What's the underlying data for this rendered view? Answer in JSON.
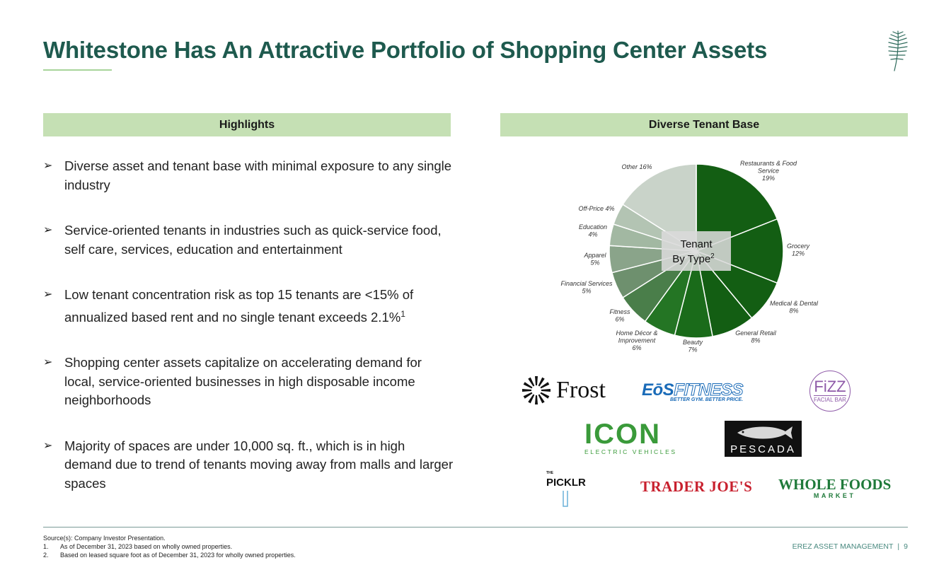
{
  "title": "Whitestone Has An Attractive Portfolio of Shopping Center Assets",
  "left_panel": {
    "header": "Highlights",
    "bullets": [
      {
        "text": "Diverse asset and tenant base with minimal exposure to any single industry",
        "sup": ""
      },
      {
        "text": "Service-oriented tenants in industries such as quick-service food, self care, services, education and entertainment",
        "sup": ""
      },
      {
        "text": "Low tenant concentration risk as top 15 tenants are <15% of annualized based rent and no single tenant exceeds 2.1%",
        "sup": "1"
      },
      {
        "text": "Shopping center assets capitalize on accelerating demand for local, service-oriented businesses in high disposable income neighborhoods",
        "sup": ""
      },
      {
        "text": "Majority of spaces are under 10,000 sq. ft., which is in high demand due to trend of tenants moving away from malls and larger spaces",
        "sup": ""
      }
    ]
  },
  "right_panel": {
    "header": "Diverse Tenant Base",
    "logos": {
      "frost": "Frost",
      "eos_a": "EōS",
      "eos_b": "FITNESS",
      "eos_tag": "BETTER GYM. BETTER PRICE.",
      "fizz_main": "FiZZ",
      "fizz_sub": "FACIAL BAR",
      "icon_main": "ICON",
      "icon_sub": "ELECTRIC VEHICLES",
      "pescada": "PESCADA",
      "picklr_the": "THE",
      "picklr": "PICKLR",
      "trader_joes": "TRADER JOE'S",
      "whole_foods": "WHOLE FOODS",
      "whole_foods_sub": "MARKET"
    }
  },
  "chart_data": {
    "type": "pie",
    "center_label": [
      "Tenant",
      "By Type"
    ],
    "center_label_sup": "2",
    "unit": "%",
    "slices": [
      {
        "label": "Restaurants & Food Service",
        "value": 19,
        "color": "#135e13"
      },
      {
        "label": "Grocery",
        "value": 12,
        "color": "#135e13"
      },
      {
        "label": "Medical & Dental",
        "value": 8,
        "color": "#135e13"
      },
      {
        "label": "General Retail",
        "value": 8,
        "color": "#135e13"
      },
      {
        "label": "Beauty",
        "value": 7,
        "color": "#1a6b1a"
      },
      {
        "label": "Home Décor & Improvement",
        "value": 6,
        "color": "#247524"
      },
      {
        "label": "Fitness",
        "value": 6,
        "color": "#4a7e4a"
      },
      {
        "label": "Financial Services",
        "value": 5,
        "color": "#6e906e"
      },
      {
        "label": "Apparel",
        "value": 5,
        "color": "#8aa48a"
      },
      {
        "label": "Education",
        "value": 4,
        "color": "#a2b8a2"
      },
      {
        "label": "Off-Price",
        "value": 4,
        "color": "#b3c4b3"
      },
      {
        "label": "Other",
        "value": 16,
        "color": "#c9d3c9"
      }
    ]
  },
  "footnotes": {
    "source": "Source(s): Company Investor Presentation.",
    "notes": [
      {
        "num": "1.",
        "text": "As of December 31, 2023 based on wholly owned properties."
      },
      {
        "num": "2.",
        "text": "Based on leased square foot as of December 31, 2023 for wholly owned properties."
      }
    ]
  },
  "footer": {
    "company": "EREZ ASSET MANAGEMENT",
    "separator": "|",
    "page": "9"
  }
}
